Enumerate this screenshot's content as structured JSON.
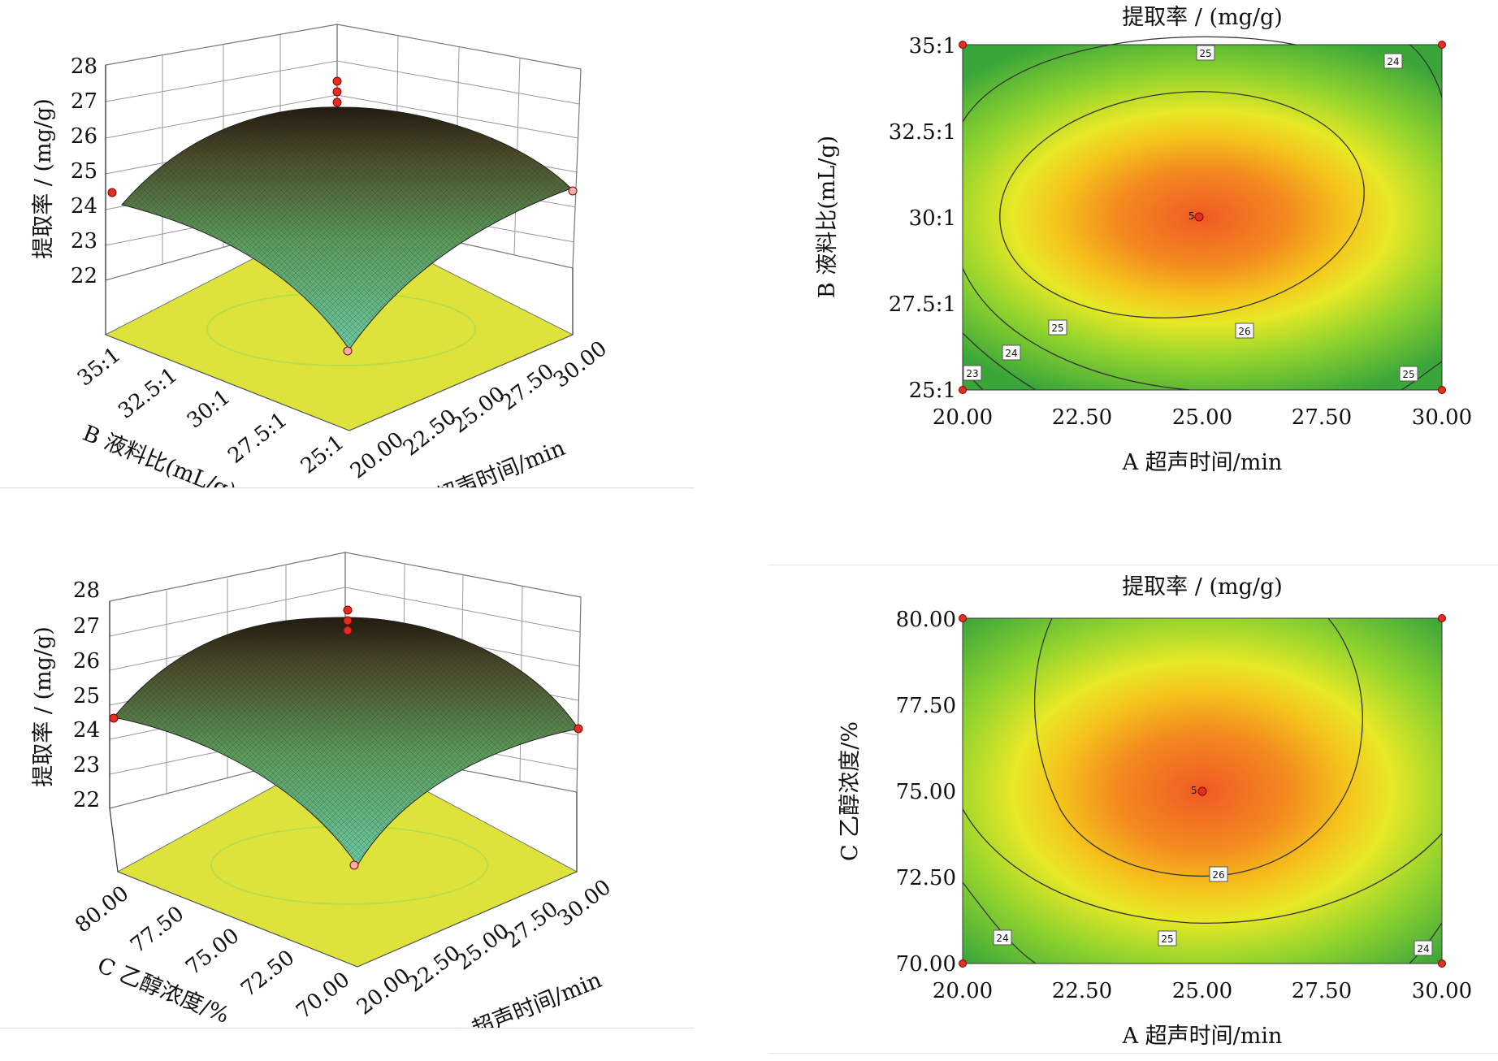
{
  "chart_data": [
    {
      "type": "surface",
      "zlabel": "提取率 / (mg/g)",
      "zticks": [
        "22",
        "23",
        "24",
        "25",
        "26",
        "27",
        "28"
      ],
      "zlim": [
        21,
        28
      ],
      "xlabel": "A 超声时间/min",
      "xticks": [
        "20.00",
        "22.50",
        "25.00",
        "27.50",
        "30.00"
      ],
      "ylabel": "B 液料比(mL/g)",
      "yticks": [
        "25:1",
        "27.5:1",
        "30:1",
        "32.5:1",
        "35:1"
      ],
      "surface_colors": [
        "#4fa878",
        "#2d2416"
      ],
      "floor_color": "#dde33a"
    },
    {
      "type": "contour",
      "title": "提取率 / (mg/g)",
      "xlabel": "A 超声时间/min",
      "xticks": [
        "20.00",
        "22.50",
        "25.00",
        "27.50",
        "30.00"
      ],
      "ylabel": "B 液料比(mL/g)",
      "yticks": [
        "25:1",
        "27.5:1",
        "30:1",
        "32.5:1",
        "35:1"
      ],
      "center_point": {
        "x": 25.0,
        "y": 30.0,
        "label": "5"
      },
      "contour_labels": [
        "25",
        "24",
        "26",
        "25",
        "24",
        "23",
        "25"
      ],
      "colors": {
        "high": "#f05a24",
        "mid": "#f2e21c",
        "low": "#3aa63a"
      }
    },
    {
      "type": "surface",
      "zlabel": "提取率 / (mg/g)",
      "zticks": [
        "22",
        "23",
        "24",
        "25",
        "26",
        "27",
        "28"
      ],
      "zlim": [
        21,
        28
      ],
      "xlabel": "A 超声时间/min",
      "xticks": [
        "20.00",
        "22.50",
        "25.00",
        "27.50",
        "30.00"
      ],
      "ylabel": "C 乙醇浓度/%",
      "yticks": [
        "70.00",
        "72.50",
        "75.00",
        "77.50",
        "80.00"
      ],
      "surface_colors": [
        "#4fa878",
        "#2d2416"
      ],
      "floor_color": "#dde33a"
    },
    {
      "type": "contour",
      "title": "提取率 / (mg/g)",
      "xlabel": "A 超声时间/min",
      "xticks": [
        "20.00",
        "22.50",
        "25.00",
        "27.50",
        "30.00"
      ],
      "ylabel": "C 乙醇浓度/%",
      "yticks": [
        "70.00",
        "72.50",
        "75.00",
        "77.50",
        "80.00"
      ],
      "center_point": {
        "x": 25.0,
        "y": 75.0,
        "label": "5"
      },
      "contour_labels": [
        "26",
        "24",
        "25",
        "24"
      ],
      "colors": {
        "high": "#f05a24",
        "mid": "#f2e21c",
        "low": "#3aa63a"
      }
    }
  ]
}
